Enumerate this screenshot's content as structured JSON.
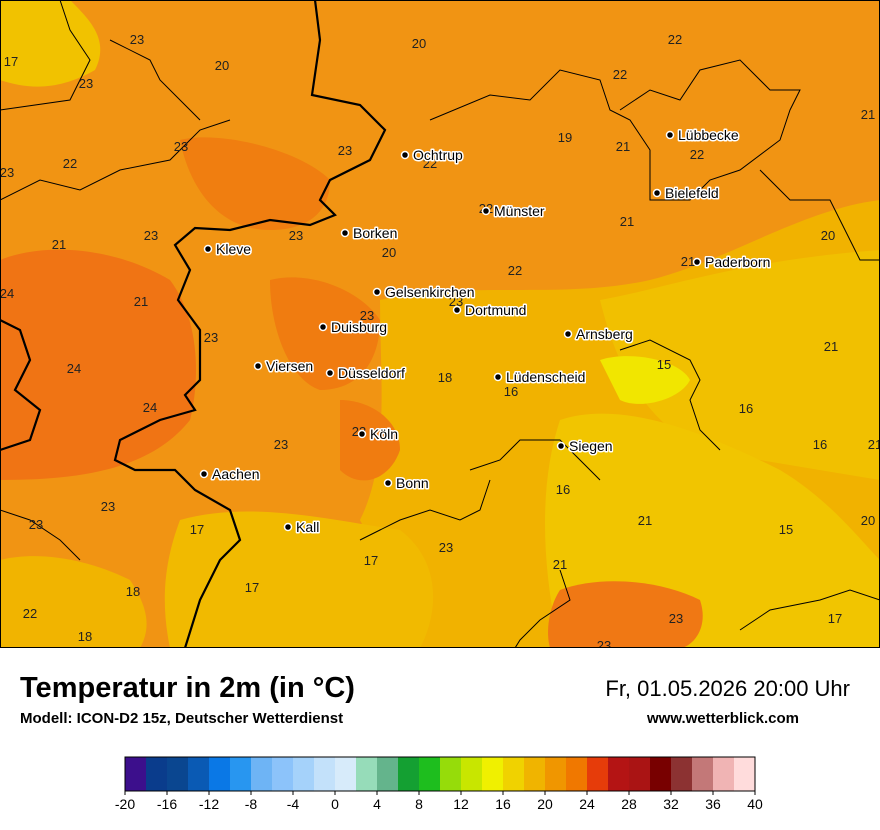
{
  "title": "Temperatur in 2m (in °C)",
  "subtitle": "Modell: ICON-D2 15z, Deutscher Wetterdienst",
  "datetime": "Fr, 01.05.2026 20:00 Uhr",
  "website": "www.wetterblick.com",
  "cities": [
    {
      "name": "Lübbecke"
    },
    {
      "name": "Ochtrup"
    },
    {
      "name": "Bielefeld"
    },
    {
      "name": "Münster"
    },
    {
      "name": "Kleve"
    },
    {
      "name": "Borken"
    },
    {
      "name": "Paderborn"
    },
    {
      "name": "Gelsenkirchen"
    },
    {
      "name": "Dortmund"
    },
    {
      "name": "Duisburg"
    },
    {
      "name": "Arnsberg"
    },
    {
      "name": "Viersen"
    },
    {
      "name": "Düsseldorf"
    },
    {
      "name": "Lüdenscheid"
    },
    {
      "name": "Köln"
    },
    {
      "name": "Siegen"
    },
    {
      "name": "Aachen"
    },
    {
      "name": "Bonn"
    },
    {
      "name": "Kall"
    }
  ],
  "temperature_labels": [
    "23",
    "20",
    "22",
    "20",
    "17",
    "23",
    "22",
    "22",
    "21",
    "23",
    "23",
    "22",
    "19",
    "21",
    "22",
    "23",
    "22",
    "21",
    "23",
    "23",
    "20",
    "21",
    "21",
    "20",
    "24",
    "21",
    "22",
    "23",
    "23",
    "21",
    "23",
    "15",
    "24",
    "18",
    "16",
    "24",
    "16",
    "16",
    "23",
    "23",
    "21",
    "23",
    "16",
    "23",
    "17",
    "21",
    "20",
    "15",
    "23",
    "17",
    "21",
    "18",
    "17",
    "23",
    "22",
    "18",
    "17",
    "23"
  ],
  "legend": {
    "colors": [
      "#3c0f8c",
      "#0a3c8c",
      "#0a4690",
      "#0a5ab4",
      "#0a78e6",
      "#2896f0",
      "#6eb4f5",
      "#8cc3fa",
      "#a5d2fa",
      "#c3e1fa",
      "#d7ebfa",
      "#96dcb9",
      "#64b48c",
      "#14a032",
      "#1ebe1e",
      "#96dc0a",
      "#c8e600",
      "#f0f000",
      "#f0d200",
      "#f0b400",
      "#f09600",
      "#f07800",
      "#e63c0a",
      "#b41414",
      "#aa1414",
      "#780000",
      "#8c3232",
      "#c37878",
      "#f0b4b4",
      "#ffdcdc"
    ],
    "ticks": [
      "-20",
      "-16",
      "-12",
      "-8",
      "-4",
      "0",
      "4",
      "8",
      "12",
      "16",
      "20",
      "24",
      "28",
      "32",
      "36",
      "40"
    ]
  }
}
